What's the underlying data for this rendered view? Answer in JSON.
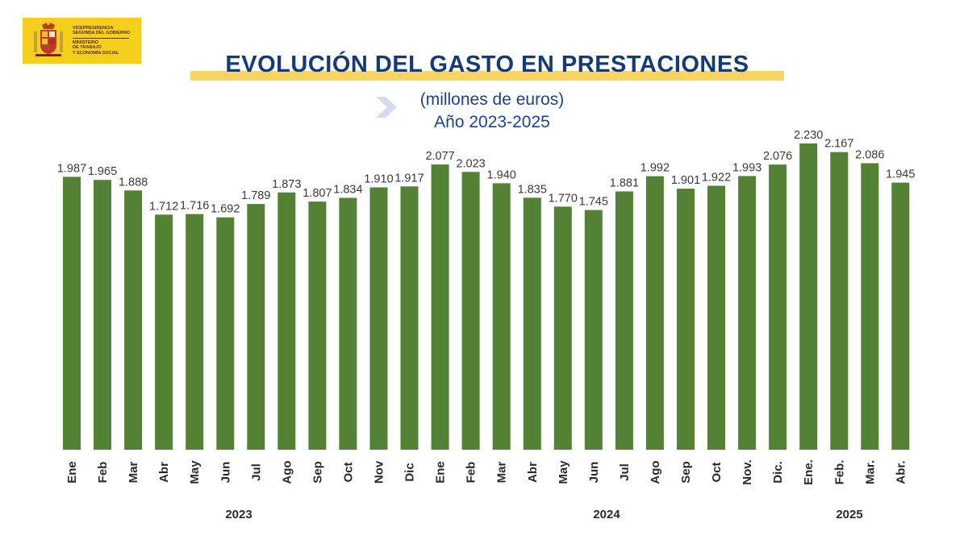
{
  "header": {
    "logo_lines": [
      "Vicepresidencia",
      "Segunda del Gobierno",
      "Ministerio",
      "de Trabajo",
      "y Economía Social"
    ],
    "title": "EVOLUCIÓN  DEL GASTO EN PRESTACIONES",
    "subtitle_units": "(millones  de euros)",
    "subtitle_years": "Año 2023-2025"
  },
  "colors": {
    "bar": "#548235",
    "title": "#153a7a",
    "title_bar": "#f7d560",
    "logo_bg": "#f5cf1b"
  },
  "chart_data": {
    "type": "bar",
    "categories": [
      "Ene",
      "Feb",
      "Mar",
      "Abr",
      "May",
      "Jun",
      "Jul",
      "Ago",
      "Sep",
      "Oct",
      "Nov",
      "Dic",
      "Ene",
      "Feb",
      "Mar",
      "Abr",
      "May",
      "Jun",
      "Jul",
      "Ago",
      "Sep",
      "Oct",
      "Nov.",
      "Dic.",
      "Ene.",
      "Feb.",
      "Mar.",
      "Abr."
    ],
    "values": [
      1987,
      1965,
      1888,
      1712,
      1716,
      1692,
      1789,
      1873,
      1807,
      1834,
      1910,
      1917,
      2077,
      2023,
      1940,
      1835,
      1770,
      1745,
      1881,
      1992,
      1901,
      1922,
      1993,
      2076,
      2230,
      2167,
      2086,
      1945
    ],
    "value_labels": [
      "1.987",
      "1.965",
      "1.888",
      "1.712",
      "1.716",
      "1.692",
      "1.789",
      "1.873",
      "1.807",
      "1.834",
      "1.910",
      "1.917",
      "2.077",
      "2.023",
      "1.940",
      "1.835",
      "1.770",
      "1.745",
      "1.881",
      "1.992",
      "1.901",
      "1.922",
      "1.993",
      "2.076",
      "2.230",
      "2.167",
      "2.086",
      "1.945"
    ],
    "groups": [
      {
        "label": "2023",
        "start": 0,
        "end": 11
      },
      {
        "label": "2024",
        "start": 12,
        "end": 23
      },
      {
        "label": "2025",
        "start": 24,
        "end": 27
      }
    ],
    "ylim": [
      0,
      2230
    ],
    "grid": false,
    "legend": "none"
  }
}
